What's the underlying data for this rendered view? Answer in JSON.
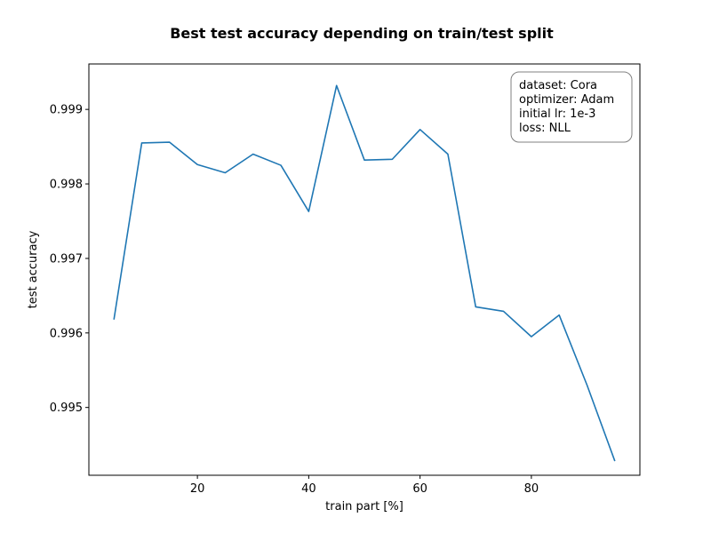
{
  "chart_data": {
    "type": "line",
    "title": "Best test accuracy depending on train/test split",
    "xlabel": "train part [%]",
    "ylabel": "test accuracy",
    "xlim": [
      0.5,
      99.5
    ],
    "ylim": [
      0.99409,
      0.99961
    ],
    "x_ticks": [
      20,
      40,
      60,
      80
    ],
    "y_ticks": [
      0.995,
      0.996,
      0.997,
      0.998,
      0.999
    ],
    "x_tick_labels": [
      "20",
      "40",
      "60",
      "80"
    ],
    "y_tick_labels": [
      "0.995",
      "0.996",
      "0.997",
      "0.998",
      "0.999"
    ],
    "grid": false,
    "legend_position": "top-right",
    "annotation_lines": [
      "dataset: Cora",
      "optimizer: Adam",
      "initial lr: 1e-3",
      "loss: NLL"
    ],
    "series": [
      {
        "color": "#1f77b4",
        "x": [
          5,
          10,
          15,
          20,
          25,
          30,
          35,
          40,
          45,
          50,
          55,
          60,
          65,
          70,
          75,
          80,
          85,
          90,
          95
        ],
        "y": [
          0.99618,
          0.99855,
          0.99856,
          0.99826,
          0.99815,
          0.9984,
          0.99825,
          0.99763,
          0.99932,
          0.99832,
          0.99833,
          0.99873,
          0.9984,
          0.99635,
          0.99629,
          0.99595,
          0.99624,
          0.9953,
          0.99428
        ]
      }
    ]
  }
}
